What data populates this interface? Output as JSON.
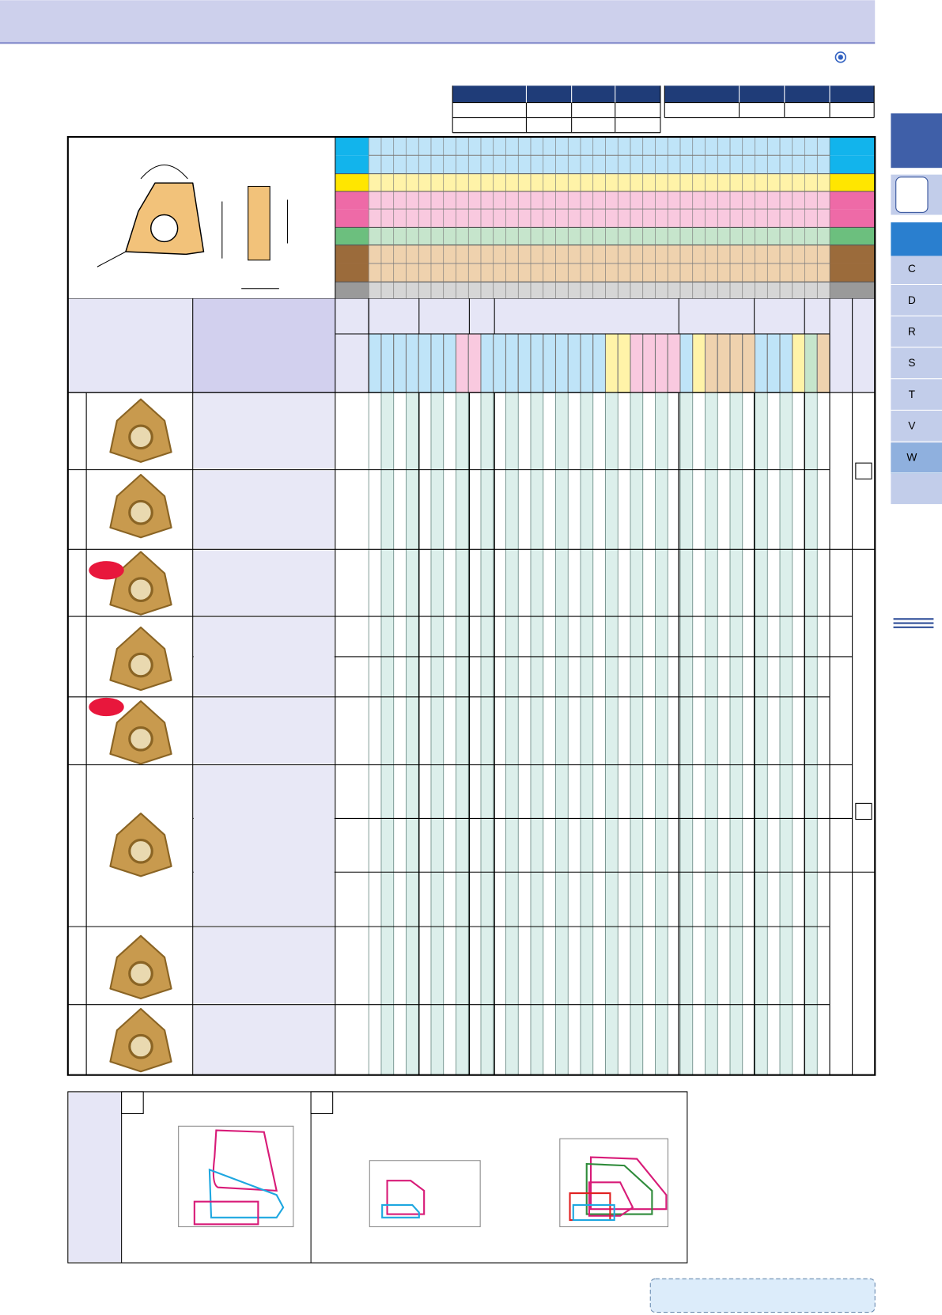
{
  "side_tabs": [
    "C",
    "D",
    "R",
    "S",
    "T",
    "V",
    "W"
  ]
}
